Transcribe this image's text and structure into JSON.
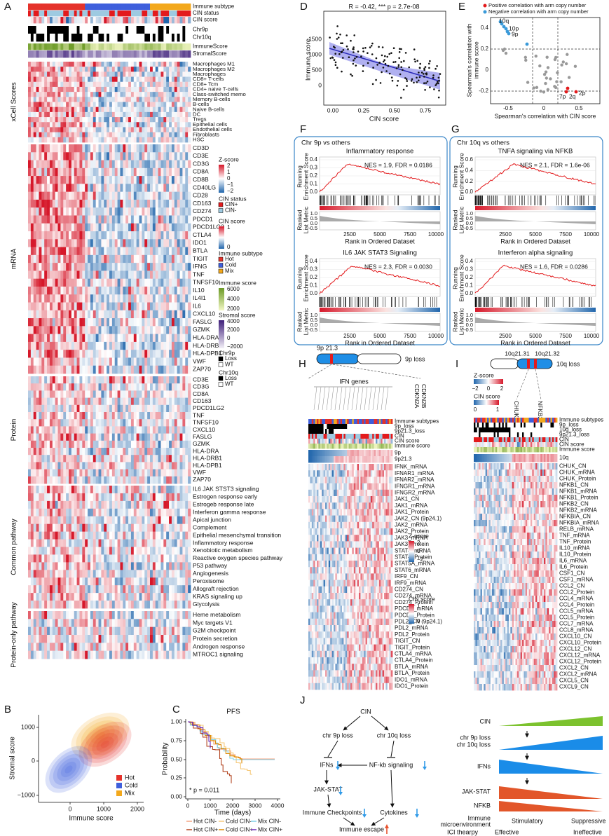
{
  "figure": {
    "panel_labels": [
      "A",
      "B",
      "C",
      "D",
      "E",
      "F",
      "G",
      "H",
      "I",
      "J"
    ],
    "a": {
      "tracks": [
        "Immune subtype",
        "CIN status",
        "CIN score",
        "Chr9p",
        "Chr10q",
        "ImmuneScore",
        "StromalScore"
      ],
      "groups": [
        {
          "title": "xCell Scores",
          "rows": [
            "Macrophages M1",
            "Macrophages M2",
            "Macrophages",
            "CD8+ T-cells",
            "CD8+ Tcm",
            "CD4+ naive T-cells",
            "Class-switched memo",
            "Memory B-cells",
            "B-cells",
            "Naive B-cells",
            "DC",
            "Tregs",
            "Epithelial cells",
            "Endothelial cells",
            "Fibroblasts",
            "HSC"
          ]
        },
        {
          "title": "mRNA",
          "rows": [
            "CD3D",
            "CD3E",
            "CD3G",
            "CD8A",
            "CD8B",
            "CD40LG",
            "CD28",
            "CD163",
            "CD274",
            "PDCD1",
            "PDCD1LG2",
            "CTLA4",
            "IDO1",
            "BTLA",
            "TIGIT",
            "IFNG",
            "TNF",
            "TNFSF10",
            "IL10",
            "IL4I1",
            "IL6",
            "CXCL10",
            "FASLG",
            "GZMK",
            "HLA-DRA",
            "HLA-DRB1",
            "HLA-DPB1",
            "VWF",
            "ZAP70"
          ]
        },
        {
          "title": "Protein",
          "rows": [
            "CD3E",
            "CD3G",
            "CD8A",
            "CD163",
            "PDCD1LG2",
            "TNF",
            "TNFSF10",
            "CXCL10",
            "FASLG",
            "GZMK",
            "HLA-DRA",
            "HLA-DRB1",
            "HLA-DPB1",
            "VWF",
            "ZAP70"
          ]
        },
        {
          "title": "Common pathway",
          "rows": [
            "IL6 JAK STST3 signaling",
            "Estrogen response early",
            "Estrogeb response late",
            "Interferon gamma response",
            "Apical junction",
            "Complement",
            "Epithelial mesenchymal transition",
            "Inflammatory response",
            "Xenobiotic metabolism",
            "Reactive oxygen species pathway",
            "P53 pathway",
            "Angiogenesis",
            "Peroxisome",
            "Allograft rejection",
            "KRAS signaling up",
            "Glycolysis"
          ]
        },
        {
          "title": "Protein-only pathway",
          "rows": [
            "Heme metabolism",
            "Myc targets V1",
            "G2M checkpoint",
            "Protein secretion",
            "Androgen response",
            "MTROC1 signaling"
          ]
        }
      ],
      "legend": [
        {
          "title": "Z-score",
          "labels": [
            "2",
            "1",
            "0",
            "−1",
            "−2"
          ]
        },
        {
          "title": "CIN status",
          "labels": [
            "CIN+",
            "CIN-"
          ]
        },
        {
          "title": "CIN score",
          "labels": [
            "1",
            "0"
          ]
        },
        {
          "title": "Immune subtype",
          "labels": [
            "Hot",
            "Cold",
            "Mix"
          ]
        },
        {
          "title": "Immune score",
          "labels": [
            "6000",
            "4000",
            "2000"
          ]
        },
        {
          "title": "Stromal score",
          "labels": [
            "4000",
            "2000",
            "0",
            "−2000"
          ]
        },
        {
          "title": "Chr9p",
          "labels": [
            "Loss",
            "WT"
          ]
        },
        {
          "title": "Chr10q",
          "labels": [
            "Loss",
            "WT"
          ]
        }
      ]
    },
    "b": {
      "y_label": "Stromal score",
      "x_label": "Immune score",
      "yticks": [
        "1000",
        "0",
        "−1000"
      ],
      "xticks": [
        "0",
        "1000",
        "2000"
      ],
      "legend": [
        "Hot",
        "Cold",
        "Mix"
      ]
    },
    "c": {
      "title": "PFS",
      "y_label": "Probability",
      "x_label": "Time (days)",
      "yticks": [
        "1.00",
        "0.75",
        "0.50",
        "0.25",
        "0.00"
      ],
      "xticks": [
        "0",
        "1000",
        "2000",
        "3000",
        "4000"
      ],
      "annotation": "* p = 0.011",
      "legend": [
        "Hot CIN-",
        "Cold CIN-",
        "Mix CIN-",
        "Hot CIN+",
        "Cold CIN+",
        "Mix CIN+"
      ]
    },
    "d": {
      "title": "R = -0.42, *** p = 2.7e-08",
      "y_label": "Immune score",
      "x_label": "CIN score",
      "yticks": [
        "1500",
        "1000",
        "500",
        "0"
      ],
      "xticks": [
        "0.00",
        "0.25",
        "0.50",
        "0.75"
      ]
    },
    "e": {
      "legend": [
        "Positive correlation with arm copy number",
        "Negative correlation with arm copy number"
      ],
      "y_label": [
        "Spearman's correlation with",
        "immune score"
      ],
      "x_label": "Spearman's correlation with CIN score",
      "yticks": [
        "0.4",
        "0.2",
        "0",
        "-0.2"
      ],
      "xticks": [
        "-0.5",
        "0",
        "0.5"
      ],
      "point_labels": [
        "10q",
        "10p",
        "9p",
        "7p",
        "2q",
        "2p"
      ]
    },
    "f": {
      "title": "Chr 9p vs others",
      "plots": [
        {
          "title": "Inflammatory response",
          "stats": "NES = 1.9, FDR = 0.0186",
          "yticks": [
            "0.4",
            "0.3",
            "0.2",
            "0.1",
            "0.0"
          ]
        },
        {
          "title": "IL6 JAK STAT3 Signaling",
          "stats": "NES = 2.3, FDR = 0.0030",
          "yticks": [
            "0.4",
            "0.3",
            "0.2",
            "0.1",
            "0.0"
          ]
        }
      ],
      "es_label": [
        "Running",
        "Enrichment Score"
      ],
      "rank_label": [
        "Ranked",
        "List Metric"
      ],
      "rank_yticks": [
        "1.0",
        "0.5",
        "0.0",
        "-0.5"
      ],
      "xticks": [
        "2500",
        "5000",
        "7500",
        "10000"
      ],
      "x_label": "Rank in Ordered Dataset"
    },
    "g": {
      "title": "Chr 10q vs others",
      "plots": [
        {
          "title": "TNFA signaling via NFKB",
          "stats": "NES = 2.1, FDR = 1.6e-06",
          "yticks": [
            "0.6",
            "0.4",
            "0.2",
            "0.0"
          ]
        },
        {
          "title": "Interferon alpha signaling",
          "stats": "NES = 1.6, FDR = 0.0286",
          "yticks": [
            "0.4",
            "0.3",
            "0.2",
            "0.1",
            "0.0"
          ]
        }
      ],
      "es_label": [
        "Running",
        "Enrichment Score"
      ],
      "rank_label": [
        "Ranked",
        "List Metric"
      ],
      "rank_yticks": [
        "1.0",
        "0.5",
        "0.0",
        "-0.5"
      ],
      "xticks": [
        "2500",
        "5000",
        "7500",
        "10000"
      ],
      "x_label": "Rank in Ordered Dataset"
    },
    "h": {
      "band": "9p 21.3",
      "loss": "9p loss",
      "genes": "IFN genes",
      "side_genes": [
        "CDKN2B",
        "CDKN2A"
      ],
      "tracks": [
        "Immune subtypes",
        "9p_loss",
        "9p21.3_loss",
        "CIN",
        "CIN score",
        "Immune score",
        "9p",
        "9p21.3"
      ],
      "rows": [
        "IFNK_mRNA",
        "IFNAR1_mRNA",
        "IFNAR2_mRNA",
        "IFNGR1_mRNA",
        "IFNGR2_mRNA",
        "JAK1_CN",
        "JAK1_mRNA",
        "JAK1_Protein",
        "JAK2_CN (9p24.1)",
        "JAK2_mRNA",
        "JAK2_Protein",
        "JAK3_mRNA",
        "JAK3_Protein",
        "STAT4_mRNA",
        "STAT4_Protein",
        "STAT5A_mRNA",
        "STAT6_mRNA",
        "IRF9_CN",
        "IRF9_mRNA",
        "CD274_CN",
        "CD274_mRNA",
        "CD274_Protein",
        "PDCD1_mRNA",
        "PDCD1_Protein",
        "PDL2_CN (9p24.1)",
        "PDL2_mRNA",
        "PDL2_Protein",
        "TIGIT_CN",
        "TIGIT_Protein",
        "CTLA4_mRNA",
        "CTLA4_Protein",
        "BTLA_mRNA",
        "BTLA_Protein",
        "IDO1_mRNA",
        "IDO1_Protein"
      ],
      "zscore": {
        "title": "Z-score",
        "labels": [
          "2",
          "0",
          "−2"
        ]
      },
      "cinscore": {
        "title": "CIN score",
        "labels": [
          "1",
          "0"
        ]
      }
    },
    "i": {
      "bands": [
        "10q21.31",
        "10q21.32"
      ],
      "loss": "10q loss",
      "genes": [
        "CHUK",
        "NFKB2"
      ],
      "zscore": {
        "title": "Z-score",
        "labels": [
          "−2",
          "0",
          "2"
        ]
      },
      "cinscore": {
        "title": "CIN score",
        "labels": [
          "0",
          "1"
        ]
      },
      "tracks": [
        "Immune subtypes",
        "9p_loss",
        "10q_loss",
        "9p21.3_loss",
        "CIN",
        "CIN score",
        "Immune score",
        "10q"
      ],
      "rows": [
        "CHUK_CN",
        "CHUK_mRNA",
        "CHUK_Protein",
        "NFKB1_CN",
        "NFKB1_mRNA",
        "NFKB1_Protein",
        "NFKB2_CN",
        "NFKB2_mRNA",
        "NFKBIA_CN",
        "NFKBIA_mRNA",
        "RELB_mRNA",
        "TNF_mRNA",
        "TNF_Protein",
        "IL10_mRNA",
        "IL10_Protein",
        "IL6_mRNA",
        "IL6_Protein",
        "CSF1_CN",
        "CSF1_mRNA",
        "CCL2_CN",
        "CCL2_Protein",
        "CCL4_mRNA",
        "CCL4_Protein",
        "CCL5_mRNA",
        "CCL5_Protein",
        "CCL7_mRNA",
        "CCL8_mRNA",
        "CXCL10_CN",
        "CXCL10_Protein",
        "CXCL12_CN",
        "CXCL12_mRNA",
        "CXCL12_Protein",
        "CXCL2_CN",
        "CXCL2_mRNA",
        "CXCL5_CN",
        "CXCL9_CN"
      ]
    },
    "j": {
      "flow": {
        "cin": "CIN",
        "chr9p": "chr 9p loss",
        "chr10q": "chr 10q loss",
        "ifns": "IFNs",
        "nfkb": "NF-kb signaling",
        "jakstat": "JAK-STAT",
        "checkpoints": "Immune Checkpoints",
        "cytokines": "Cytokines",
        "escape": "Immune escape"
      },
      "gradient": {
        "cin": "CIN",
        "chr": [
          "chr 9p loss",
          "chr 10q loss"
        ],
        "ifns": "IFNs",
        "jakstat": "JAK-STAT",
        "nfkb": "NFKB",
        "microenv": [
          "Immune",
          "microenvironment"
        ],
        "stimulatory": "Stimulatory",
        "suppressive": "Suppressive",
        "ici": "ICI thearpy",
        "effective": "Effective",
        "ineffective": "Ineffective"
      }
    }
  }
}
